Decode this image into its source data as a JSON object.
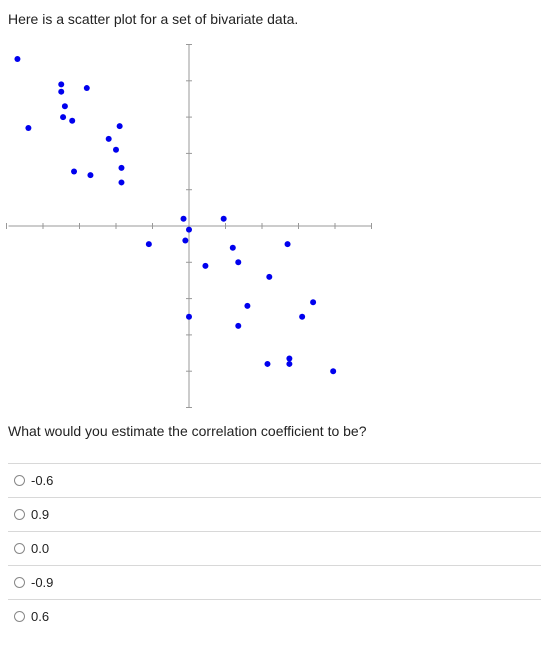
{
  "prompt": "Here is a scatter plot for a set of bivariate data.",
  "question": "What would you estimate the correlation coefficient to be?",
  "options": [
    {
      "label": "-0.6"
    },
    {
      "label": "0.9"
    },
    {
      "label": "0.0"
    },
    {
      "label": "-0.9"
    },
    {
      "label": "0.6"
    }
  ],
  "chart_data": {
    "type": "scatter",
    "title": "",
    "xlabel": "",
    "ylabel": "",
    "xlim": [
      -5,
      5
    ],
    "ylim": [
      -5,
      5
    ],
    "grid": false,
    "point_color": "#0000ee",
    "axis_color": "#999999",
    "points": [
      {
        "x": -4.7,
        "y": 4.6
      },
      {
        "x": -4.4,
        "y": 2.7
      },
      {
        "x": -3.5,
        "y": 3.9
      },
      {
        "x": -3.5,
        "y": 3.7
      },
      {
        "x": -3.4,
        "y": 3.3
      },
      {
        "x": -3.45,
        "y": 3.0
      },
      {
        "x": -3.2,
        "y": 2.9
      },
      {
        "x": -3.15,
        "y": 1.5
      },
      {
        "x": -2.8,
        "y": 3.8
      },
      {
        "x": -2.7,
        "y": 1.4
      },
      {
        "x": -2.2,
        "y": 2.4
      },
      {
        "x": -2.0,
        "y": 2.1
      },
      {
        "x": -1.9,
        "y": 2.75
      },
      {
        "x": -1.85,
        "y": 1.6
      },
      {
        "x": -1.85,
        "y": 1.2
      },
      {
        "x": -1.1,
        "y": -0.5
      },
      {
        "x": -0.15,
        "y": 0.2
      },
      {
        "x": -0.1,
        "y": -0.4
      },
      {
        "x": 0.0,
        "y": -0.1
      },
      {
        "x": 0.0,
        "y": -2.5
      },
      {
        "x": 0.45,
        "y": -1.1
      },
      {
        "x": 0.95,
        "y": 0.2
      },
      {
        "x": 1.2,
        "y": -0.6
      },
      {
        "x": 1.35,
        "y": -1.0
      },
      {
        "x": 1.35,
        "y": -2.75
      },
      {
        "x": 1.6,
        "y": -2.2
      },
      {
        "x": 2.2,
        "y": -1.4
      },
      {
        "x": 2.15,
        "y": -3.8
      },
      {
        "x": 2.7,
        "y": -0.5
      },
      {
        "x": 2.75,
        "y": -3.8
      },
      {
        "x": 2.75,
        "y": -3.65
      },
      {
        "x": 3.1,
        "y": -2.5
      },
      {
        "x": 3.4,
        "y": -2.1
      },
      {
        "x": 3.95,
        "y": -4.0
      }
    ]
  }
}
